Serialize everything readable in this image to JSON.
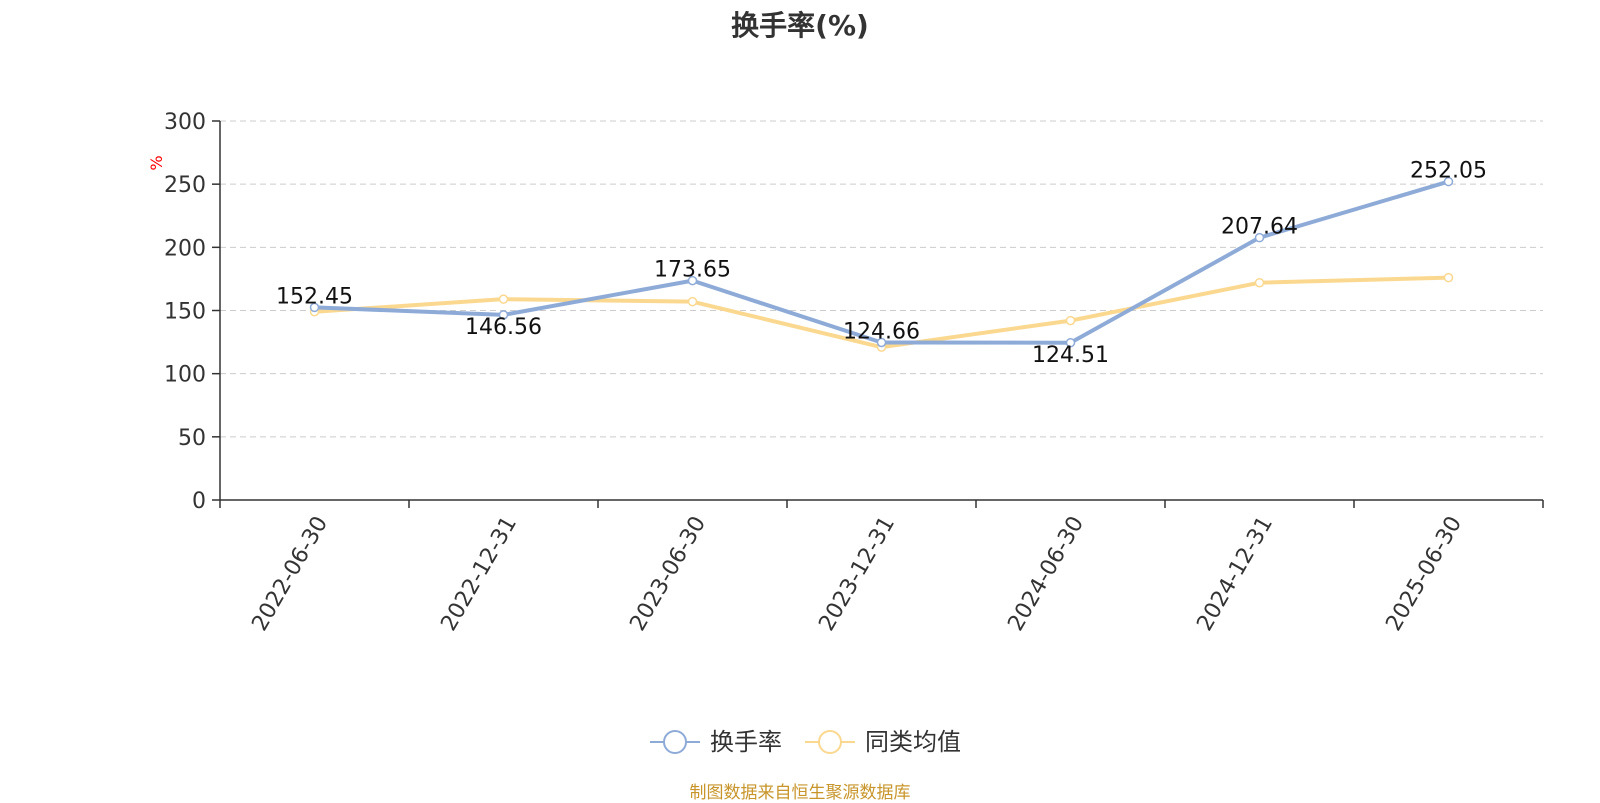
{
  "chart_data": {
    "type": "line",
    "title": "换手率(%)",
    "ylabel": "%",
    "xlabel": "",
    "categories": [
      "2022-06-30",
      "2022-12-31",
      "2023-06-30",
      "2023-12-31",
      "2024-06-30",
      "2024-12-31",
      "2025-06-30"
    ],
    "ylim": [
      0,
      300
    ],
    "yticks": [
      0,
      50,
      100,
      150,
      200,
      250,
      300
    ],
    "grid": true,
    "legend_position": "bottom-center",
    "series": [
      {
        "name": "换手率",
        "color": "#8eabd8",
        "values": [
          152.45,
          146.56,
          173.65,
          124.66,
          124.51,
          207.64,
          252.05
        ],
        "labels": [
          "152.45",
          "146.56",
          "173.65",
          "124.66",
          "124.51",
          "207.64",
          "252.05"
        ]
      },
      {
        "name": "同类均值",
        "color": "#fbd88f",
        "values": [
          149,
          159,
          157,
          121,
          142,
          172,
          176
        ]
      }
    ]
  },
  "source_text": "制图数据来自恒生聚源数据库",
  "colors": {
    "axis": "#333333",
    "grid": "#cccccc",
    "ylabel": "#ff0000",
    "source": "#c8952a"
  }
}
